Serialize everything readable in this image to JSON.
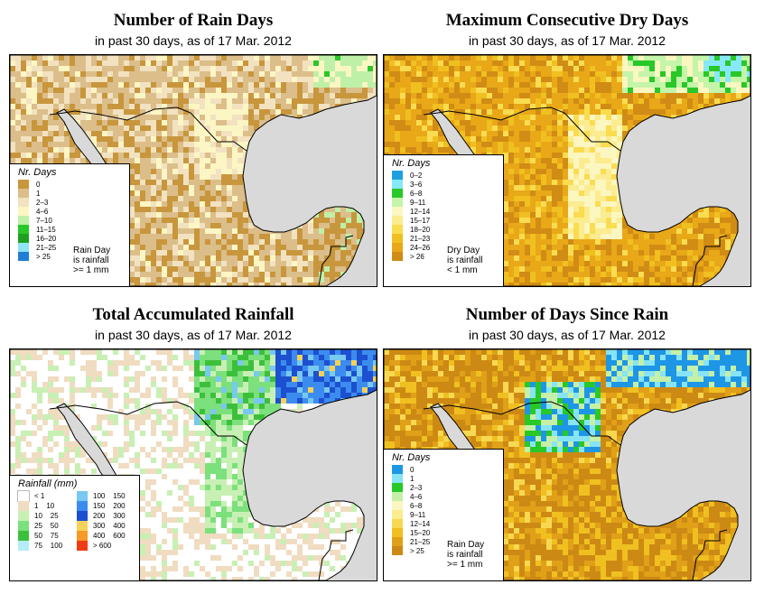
{
  "panels": [
    {
      "title": "Number of Rain Days",
      "subtitle": "in past 30 days, as of  17 Mar. 2012",
      "legend_title": "Nr. Days",
      "legend": [
        {
          "label": "0",
          "color": "#c8963c"
        },
        {
          "label": "1",
          "color": "#dcbe8a"
        },
        {
          "label": "2–3",
          "color": "#f2e2c0"
        },
        {
          "label": "4–6",
          "color": "#fcf6c4"
        },
        {
          "label": "7–10",
          "color": "#bff0a8"
        },
        {
          "label": "11–15",
          "color": "#28c828"
        },
        {
          "label": "16–20",
          "color": "#1ea01e"
        },
        {
          "label": "21–25",
          "color": "#8fe4f5"
        },
        {
          "label": "> 25",
          "color": "#1f7fd6"
        }
      ],
      "note": [
        "Rain Day",
        "is rainfall",
        ">= 1 mm"
      ],
      "scheme": "raindays"
    },
    {
      "title": "Maximum Consecutive Dry Days",
      "subtitle": "in past 30 days, as of  17 Mar. 2012",
      "legend_title": "Nr. Days",
      "legend": [
        {
          "label": "0–2",
          "color": "#1ea0e0"
        },
        {
          "label": "3–6",
          "color": "#86e8f8"
        },
        {
          "label": "6–8",
          "color": "#28c828"
        },
        {
          "label": "9–11",
          "color": "#c4f5a8"
        },
        {
          "label": "12–14",
          "color": "#fcf6c0"
        },
        {
          "label": "15–17",
          "color": "#fcec90"
        },
        {
          "label": "18–20",
          "color": "#fadc50"
        },
        {
          "label": "21–23",
          "color": "#f0c020"
        },
        {
          "label": "24–26",
          "color": "#e8a818"
        },
        {
          "label": "> 26",
          "color": "#d08c14"
        }
      ],
      "note": [
        "Dry Day",
        "is rainfall",
        "< 1 mm"
      ],
      "scheme": "drydays"
    },
    {
      "title": "Total Accumulated Rainfall",
      "subtitle": "in past 30 days, as of  17 Mar. 2012",
      "legend_title": "Rainfall (mm)",
      "legend_left": [
        {
          "label": "< 1",
          "color": "#ffffff"
        },
        {
          "label": "1    10",
          "color": "#f0dcc0"
        },
        {
          "label": "10    25",
          "color": "#c8f0b4"
        },
        {
          "label": "25    50",
          "color": "#7ce07c"
        },
        {
          "label": "50    75",
          "color": "#3cc03c"
        },
        {
          "label": "75   100",
          "color": "#b4ecf8"
        }
      ],
      "legend_right": [
        {
          "label": "100  150",
          "color": "#78c8f0"
        },
        {
          "label": "150  200",
          "color": "#3c8cf0"
        },
        {
          "label": "200  300",
          "color": "#1c50d0"
        },
        {
          "label": "300  400",
          "color": "#f5d25a"
        },
        {
          "label": "400  600",
          "color": "#f59a28"
        },
        {
          "label": "> 600",
          "color": "#f03c14"
        }
      ],
      "scheme": "rainfall"
    },
    {
      "title": "Number of Days Since Rain",
      "subtitle": "in past 30 days, as of  17 Mar. 2012",
      "legend_title": "Nr. Days",
      "legend": [
        {
          "label": "0",
          "color": "#1e96e6"
        },
        {
          "label": "1",
          "color": "#86e4f6"
        },
        {
          "label": "2–3",
          "color": "#28c828"
        },
        {
          "label": "4–6",
          "color": "#c4f0a8"
        },
        {
          "label": "6–8",
          "color": "#fcf6c0"
        },
        {
          "label": "9–11",
          "color": "#fcec90"
        },
        {
          "label": "12–14",
          "color": "#f8d850"
        },
        {
          "label": "15–20",
          "color": "#f0c020"
        },
        {
          "label": "21–25",
          "color": "#e0a018"
        },
        {
          "label": "> 25",
          "color": "#cc8a14"
        }
      ],
      "note": [
        "Rain Day",
        "is rainfall",
        ">= 1 mm"
      ],
      "scheme": "sincerain"
    }
  ]
}
